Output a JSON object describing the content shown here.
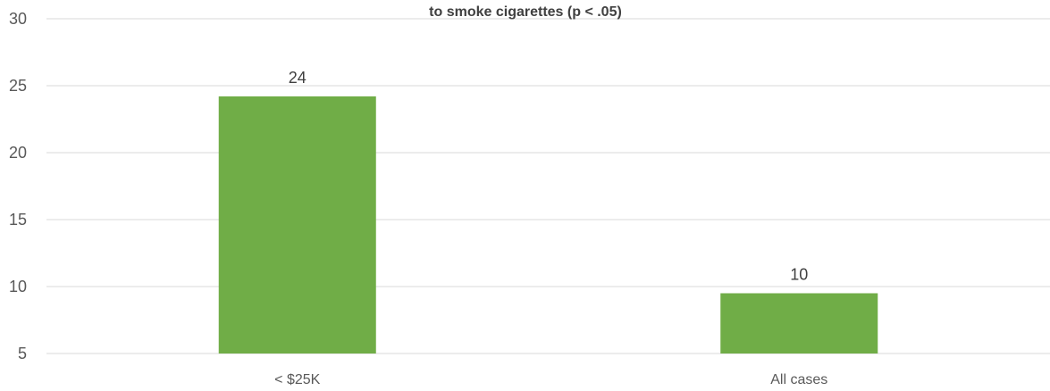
{
  "chart_data": {
    "type": "bar",
    "title": "to smoke cigarettes (p < .05)",
    "categories": [
      "< $25K",
      "All cases"
    ],
    "values": [
      24.2,
      9.5
    ],
    "data_labels": [
      "24",
      "10"
    ],
    "ylim": [
      5,
      30
    ],
    "yticks": [
      5,
      10,
      15,
      20,
      25,
      30
    ],
    "xlabel": "",
    "ylabel": "",
    "grid": true,
    "legend": "none",
    "bar_color": "#70ad47",
    "gridline_color": "#d9d9d9"
  }
}
